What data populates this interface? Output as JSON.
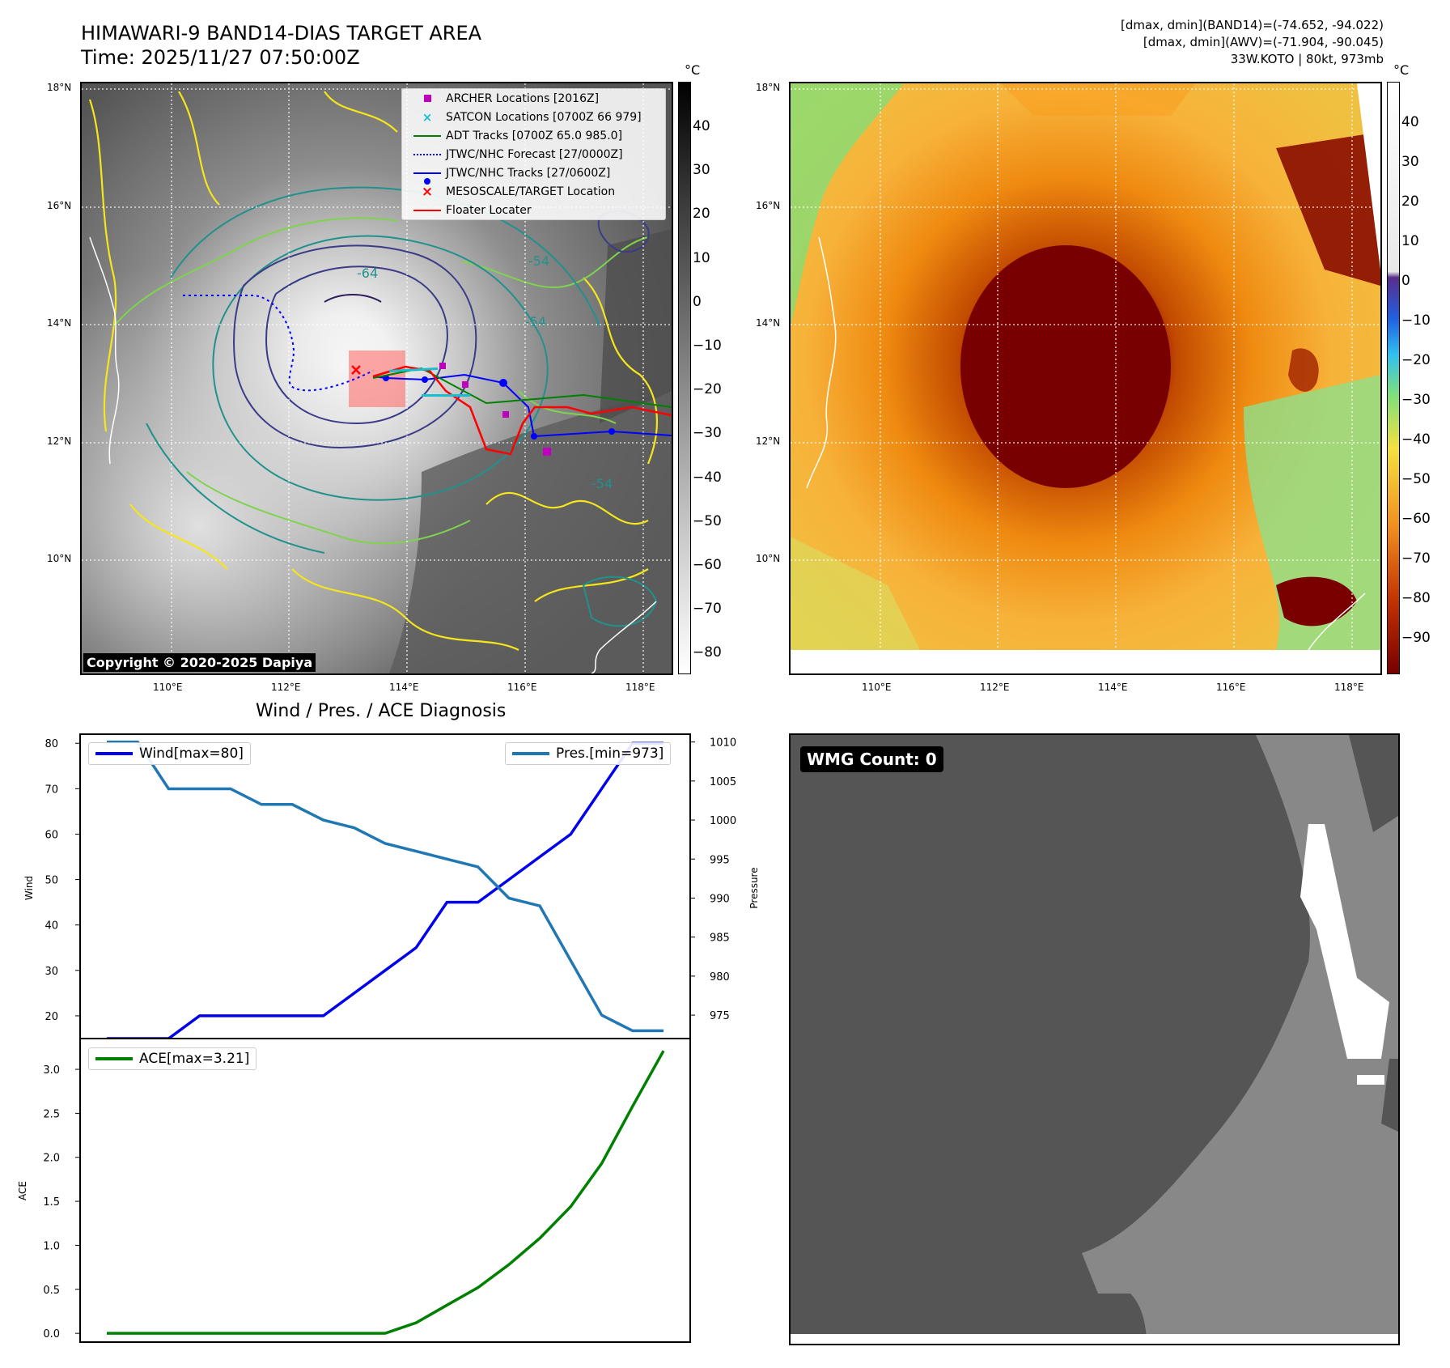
{
  "header": {
    "title_line1": "HIMAWARI-9 BAND14-DIAS TARGET AREA",
    "title_line2": "Time: 2025/11/27 07:50:00Z",
    "meta_line1": "[dmax, dmin](BAND14)=(-74.652, -94.022)",
    "meta_line2": "[dmax, dmin](AWV)=(-71.904, -90.045)",
    "meta_line3": "33W.KOTO | 80kt, 973mb"
  },
  "map": {
    "lat_ticks": [
      "18°N",
      "16°N",
      "14°N",
      "12°N",
      "10°N"
    ],
    "lon_ticks": [
      "110°E",
      "112°E",
      "114°E",
      "116°E",
      "118°E"
    ],
    "contour_labels": [
      "-64",
      "-54",
      "-54",
      "-54"
    ],
    "copyright": "Copyright © 2020-2025 Dapiya"
  },
  "colorbar_left": {
    "unit": "°C",
    "ticks": [
      "40",
      "30",
      "20",
      "10",
      "0",
      "−10",
      "−20",
      "−30",
      "−40",
      "−50",
      "−60",
      "−70",
      "−80"
    ]
  },
  "colorbar_right": {
    "unit": "°C",
    "ticks": [
      "40",
      "30",
      "20",
      "10",
      "0",
      "−10",
      "−20",
      "−30",
      "−40",
      "−50",
      "−60",
      "−70",
      "−80",
      "−90"
    ]
  },
  "legend": {
    "items": [
      {
        "label": "ARCHER Locations [2016Z]",
        "color": "#bf00bf"
      },
      {
        "label": "SATCON Locations [0700Z 66 979]",
        "color": "#17becf"
      },
      {
        "label": "ADT Tracks [0700Z 65.0 985.0]",
        "color": "#008000"
      },
      {
        "label": "JTWC/NHC Forecast [27/0000Z]",
        "color": "#0000ff"
      },
      {
        "label": "JTWC/NHC Tracks [27/0600Z]",
        "color": "#0000ff"
      },
      {
        "label": "MESOSCALE/TARGET Location",
        "color": "#ff0000"
      },
      {
        "label": "Floater Locater",
        "color": "#ff0000"
      }
    ]
  },
  "diagnosis": {
    "title": "Wind / Pres. / ACE Diagnosis",
    "wind_label": "Wind",
    "pressure_label": "Pressure",
    "ace_label": "ACE",
    "wind_legend": "Wind[max=80]",
    "pres_legend": "Pres.[min=973]",
    "ace_legend": "ACE[max=3.21]"
  },
  "wmg": {
    "label": "WMG Count: 0"
  },
  "chart_data": [
    {
      "type": "line",
      "title": "Wind / Pres. / ACE Diagnosis",
      "x": [
        0,
        1,
        2,
        3,
        4,
        5,
        6,
        7,
        8,
        9,
        10,
        11,
        12,
        13,
        14,
        15,
        16,
        17,
        18
      ],
      "ylabel": "Wind",
      "ylim": [
        15,
        82
      ],
      "yticks": [
        20,
        30,
        40,
        50,
        60,
        70,
        80
      ],
      "y2label": "Pressure",
      "y2lim": [
        972,
        1011
      ],
      "y2ticks": [
        975,
        980,
        985,
        990,
        995,
        1000,
        1005,
        1010
      ],
      "series": [
        {
          "name": "Wind[max=80]",
          "axis": "left",
          "color": "#0000ee",
          "values": [
            15,
            15,
            15,
            20,
            20,
            20,
            20,
            20,
            25,
            30,
            35,
            45,
            45,
            50,
            55,
            60,
            70,
            80,
            80
          ]
        },
        {
          "name": "Pres.[min=973]",
          "axis": "right",
          "color": "#1f77b4",
          "values": [
            1010,
            1010,
            1004,
            1004,
            1004,
            1002,
            1002,
            1000,
            999,
            997,
            996,
            995,
            994,
            990,
            989,
            982,
            975,
            973,
            973
          ]
        }
      ]
    },
    {
      "type": "line",
      "x": [
        0,
        1,
        2,
        3,
        4,
        5,
        6,
        7,
        8,
        9,
        10,
        11,
        12,
        13,
        14,
        15,
        16,
        17,
        18
      ],
      "ylabel": "ACE",
      "ylim": [
        -0.1,
        3.35
      ],
      "yticks": [
        "0.0",
        "0.5",
        "1.0",
        "1.5",
        "2.0",
        "2.5",
        "3.0"
      ],
      "series": [
        {
          "name": "ACE[max=3.21]",
          "color": "#008000",
          "values": [
            0,
            0,
            0,
            0,
            0,
            0,
            0,
            0,
            0,
            0,
            0.12,
            0.32,
            0.52,
            0.78,
            1.08,
            1.44,
            1.93,
            2.58,
            3.21
          ]
        }
      ]
    }
  ]
}
